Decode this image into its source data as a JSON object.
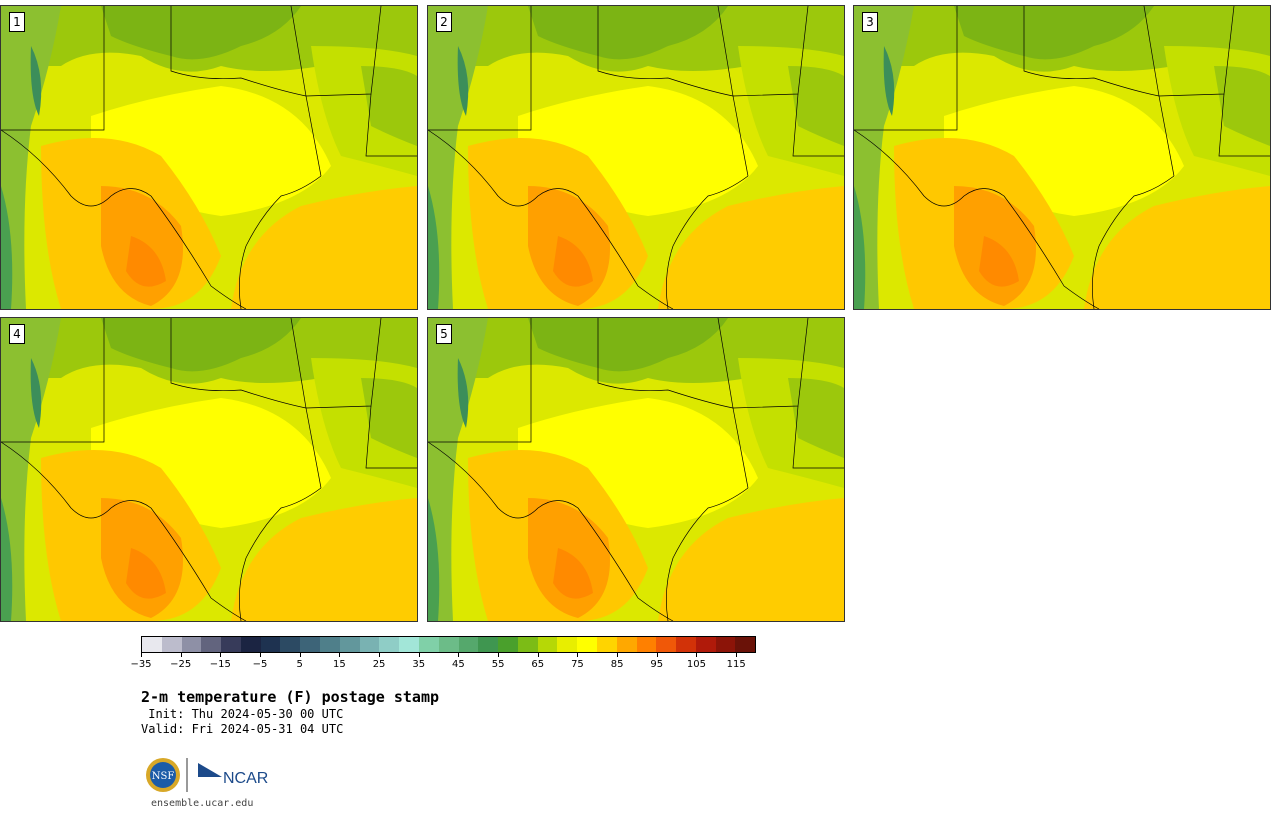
{
  "panels": [
    {
      "label": "1"
    },
    {
      "label": "2"
    },
    {
      "label": "3"
    },
    {
      "label": "4"
    },
    {
      "label": "5"
    }
  ],
  "colorbar": {
    "colors": [
      "#e8e8ee",
      "#bcbccc",
      "#8e90a6",
      "#62647e",
      "#373b5a",
      "#1b2442",
      "#1e3250",
      "#2c4a63",
      "#3d6478",
      "#4f7f8a",
      "#62979c",
      "#79b2b2",
      "#8fcdc6",
      "#a2e6d8",
      "#80d0a8",
      "#6cbc88",
      "#55a86c",
      "#3f9650",
      "#4aa02c",
      "#7cbc16",
      "#b6d806",
      "#e8ee00",
      "#ffff00",
      "#ffd400",
      "#ffa800",
      "#ff8000",
      "#f05808",
      "#d23208",
      "#b01a0a",
      "#8c1408",
      "#6a1208"
    ],
    "ticks": [
      "−35",
      "−25",
      "−15",
      "−5",
      "5",
      "15",
      "25",
      "35",
      "45",
      "55",
      "65",
      "75",
      "85",
      "95",
      "105",
      "115"
    ]
  },
  "title": "2-m temperature (F) postage stamp",
  "init": " Init: Thu 2024-05-30 00 UTC",
  "valid": "Valid: Fri 2024-05-31 04 UTC",
  "url": "ensemble.ucar.edu",
  "logos": {
    "nsf": "NSF",
    "ncar": "NCAR"
  }
}
